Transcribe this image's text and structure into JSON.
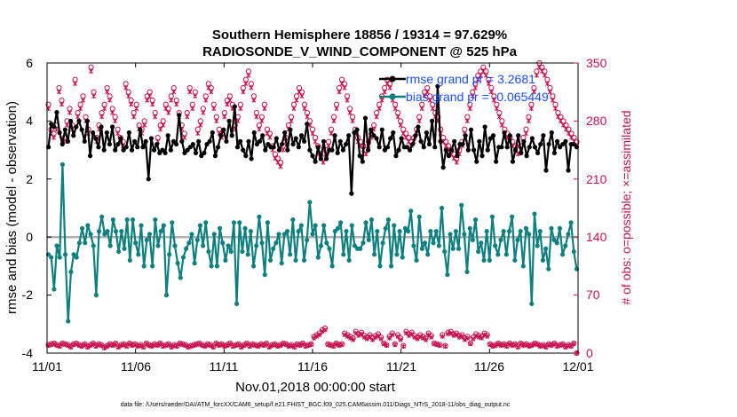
{
  "chart_data": {
    "type": "line",
    "title": "Southern Hemisphere 18856 / 19314 = 97.629%",
    "subtitle": "RADIOSONDE_V_WIND_COMPONENT @ 525 hPa",
    "xlabel": "Nov.01,2018 00:00:00 start",
    "ylabel": "rmse and bias (model - observation)",
    "ylabel_right": "# of obs: o=possible; ×=assimilated",
    "footer": "data file: /Users/raeder/DAI/ATM_forcXX/CAM6_setup/f.e21.FHIST_BGC.f09_025.CAM6assim.011/Diags_NTrS_2018-11/obs_diag_output.nc",
    "xlim": [
      0,
      30
    ],
    "ylim": [
      -4,
      6
    ],
    "ylim_right": [
      0,
      350
    ],
    "x_tick_labels": [
      "11/01",
      "11/06",
      "11/11",
      "11/16",
      "11/21",
      "11/26",
      "12/01"
    ],
    "y_tick_labels": [
      "-4",
      "-2",
      "0",
      "2",
      "4",
      "6"
    ],
    "y_right_tick_labels": [
      "0",
      "70",
      "140",
      "210",
      "280",
      "350"
    ],
    "legend": [
      "rmse grand pr = 3.2681",
      "bias grand pr = -0.065449"
    ],
    "colors": {
      "rmse": "#000000",
      "bias": "#0f8080",
      "obs": "#c8104b",
      "zero": "#b0b0b0",
      "legend_text": "#1a4dff"
    },
    "series": [
      {
        "name": "rmse",
        "values": [
          3.1,
          3.9,
          3.8,
          4.3,
          3.6,
          3.2,
          3.7,
          3.3,
          4.0,
          3.5,
          3.8,
          4.0,
          3.7,
          3.3,
          4.0,
          2.8,
          3.6,
          3.4,
          3.1,
          3.8,
          3.0,
          3.6,
          3.2,
          3.8,
          3.0,
          3.2,
          3.4,
          3.0,
          3.1,
          3.6,
          3.0,
          3.3,
          3.1,
          3.7,
          3.1,
          3.3,
          2.0,
          3.4,
          3.0,
          3.2,
          2.9,
          3.0,
          2.9,
          3.5,
          3.0,
          3.3,
          3.2,
          4.2,
          3.3,
          2.9,
          3.0,
          3.1,
          3.2,
          2.9,
          3.3,
          2.8,
          2.9,
          3.2,
          3.3,
          3.6,
          2.8,
          3.1,
          3.5,
          3.7,
          3.3,
          4.0,
          3.5,
          4.5,
          3.1,
          3.3,
          3.0,
          2.8,
          3.3,
          2.7,
          3.6,
          3.2,
          3.3,
          3.5,
          3.0,
          3.2,
          3.1,
          3.1,
          3.4,
          3.0,
          3.2,
          3.6,
          3.0,
          3.7,
          3.2,
          3.4,
          3.1,
          3.5,
          3.3,
          3.9,
          3.0,
          2.8,
          2.6,
          3.1,
          2.7,
          3.3,
          2.7,
          3.0,
          3.0,
          3.5,
          2.9,
          3.3,
          3.0,
          3.2,
          3.5,
          1.5,
          3.6,
          3.7,
          2.8,
          2.6,
          4.1,
          3.0,
          3.7,
          3.5,
          3.4,
          3.1,
          3.7,
          3.0,
          3.1,
          3.4,
          3.6,
          2.8,
          3.0,
          3.4,
          3.1,
          3.1,
          3.0,
          3.2,
          3.5,
          3.8,
          3.3,
          3.1,
          3.6,
          3.2,
          4.0,
          3.1,
          5.2,
          3.3,
          2.4,
          3.0,
          2.8,
          3.0,
          3.3,
          2.8,
          3.2,
          3.2,
          3.5,
          3.0,
          3.7,
          3.0,
          2.6,
          3.3,
          2.8,
          3.8,
          3.0,
          3.4,
          3.5,
          2.6,
          3.1,
          3.1,
          3.6,
          3.1,
          3.5,
          2.6,
          3.0,
          3.5,
          2.9,
          3.3,
          2.8,
          3.1,
          3.4,
          3.1,
          2.9,
          3.2,
          3.5,
          2.3,
          3.2,
          3.6,
          2.9,
          3.3,
          3.1,
          3.2,
          3.3,
          2.3,
          3.2,
          3.2,
          3.1
        ]
      },
      {
        "name": "bias",
        "values": [
          -0.6,
          -0.7,
          -1.8,
          -0.3,
          -0.7,
          2.5,
          -0.6,
          -2.9,
          -1.2,
          -0.6,
          -0.7,
          -0.2,
          0.3,
          -0.2,
          0.4,
          0.1,
          -0.3,
          -2.0,
          0.2,
          0.7,
          0.1,
          0.2,
          -0.3,
          0.6,
          0.2,
          -0.5,
          0.2,
          -0.4,
          0.6,
          -0.8,
          0.6,
          -0.2,
          -0.6,
          0.4,
          -1.0,
          -0.1,
          0.1,
          -1.0,
          0.6,
          -0.3,
          0.2,
          0.4,
          -2.0,
          -0.6,
          0.5,
          -0.3,
          -0.9,
          -1.4,
          -0.7,
          -0.4,
          -0.2,
          0.1,
          -0.9,
          -0.1,
          0.4,
          -0.3,
          0.5,
          -0.5,
          -1.0,
          0.1,
          -1.0,
          0.3,
          -0.2,
          -0.8,
          -0.3,
          -0.5,
          0.5,
          -2.3,
          0.5,
          -0.5,
          0.3,
          -0.6,
          0.2,
          -1.0,
          -0.3,
          0.7,
          -0.2,
          -1.3,
          0.5,
          -0.8,
          -0.4,
          -0.2,
          0.1,
          -0.9,
          0.1,
          0.2,
          -0.6,
          0.6,
          -0.8,
          0.2,
          0.4,
          -0.8,
          -0.1,
          1.2,
          0.1,
          0.4,
          -0.7,
          -0.3,
          0.4,
          -0.2,
          -0.4,
          -1.0,
          0.2,
          0.3,
          0.5,
          -0.6,
          0.2,
          -0.8,
          0.4,
          -0.3,
          -0.4,
          -0.4,
          -0.2,
          0.5,
          -0.1,
          0.6,
          -0.6,
          0.2,
          -1.0,
          -0.2,
          0.3,
          0.6,
          -1.0,
          0.4,
          -0.6,
          0.2,
          -0.7,
          0.3,
          0.2,
          0.9,
          -0.3,
          -0.8,
          0.7,
          -0.4,
          -0.2,
          -0.6,
          0.2,
          -0.2,
          0.2,
          -0.3,
          1.0,
          -0.5,
          -1.3,
          0.1,
          -0.4,
          0.2,
          -0.4,
          1.1,
          0.1,
          -1.2,
          0.3,
          -0.1,
          0.6,
          -0.5,
          -0.2,
          -0.8,
          0.2,
          -0.8,
          0.7,
          -0.3,
          -0.6,
          -0.1,
          0.2,
          -0.6,
          0.2,
          0.7,
          -0.8,
          -0.1,
          0.2,
          -1.0,
          0.3,
          0.1,
          -2.3,
          0.8,
          -0.3,
          0.2,
          -0.8,
          -0.4,
          -1.1,
          0.3,
          -0.1,
          -0.2,
          0.3,
          -0.6,
          -0.3,
          0.1,
          0.5,
          -0.5,
          -1.1
        ]
      },
      {
        "name": "obs_possible",
        "values": [
          10,
          11,
          12,
          10,
          9,
          12,
          11,
          10,
          8,
          11,
          12,
          10,
          9,
          11,
          8,
          10,
          12,
          9,
          11,
          10,
          7,
          9,
          11,
          10,
          12,
          8,
          10,
          11,
          9,
          12,
          10,
          11,
          9,
          10,
          8,
          12,
          10,
          9,
          11,
          10,
          12,
          9,
          10,
          11,
          8,
          10,
          9,
          12,
          11,
          10,
          8,
          9,
          10,
          11,
          12,
          10,
          9,
          11,
          10,
          8,
          12,
          10,
          11,
          9,
          10,
          12,
          9,
          10,
          11,
          8,
          10,
          12,
          9,
          11,
          10,
          9,
          11,
          10,
          12,
          8,
          10,
          11,
          9,
          10,
          12,
          11,
          9,
          10,
          8,
          11,
          10,
          12,
          9,
          10,
          11,
          20,
          22,
          24,
          28,
          30,
          11,
          10,
          9,
          12,
          10,
          11,
          24,
          22,
          20,
          18,
          26,
          23,
          25,
          21,
          19,
          22,
          18,
          21,
          23,
          19,
          12,
          10,
          20,
          24,
          11,
          22,
          18,
          9,
          26,
          23,
          25,
          21,
          19,
          22,
          20,
          18,
          24,
          21,
          12,
          11,
          10,
          22,
          9,
          25,
          26,
          23,
          24,
          21,
          22,
          18,
          20,
          12,
          19,
          23,
          21,
          20,
          24,
          22,
          11,
          9,
          10,
          12,
          10,
          11,
          9,
          12,
          10,
          11,
          8,
          12,
          10,
          11,
          9,
          10,
          12,
          11,
          9,
          10,
          8,
          11,
          10,
          12,
          9,
          10,
          11,
          8,
          10,
          9,
          12,
          0
        ]
      },
      {
        "name": "obs_assimilated",
        "values": [
          9,
          10,
          11,
          9,
          8,
          11,
          10,
          9,
          7,
          10,
          11,
          9,
          8,
          10,
          7,
          9,
          11,
          8,
          10,
          9,
          6,
          8,
          10,
          9,
          11,
          7,
          9,
          10,
          8,
          11,
          9,
          10,
          8,
          9,
          7,
          11,
          9,
          8,
          10,
          9,
          11,
          8,
          9,
          10,
          7,
          9,
          8,
          11,
          10,
          9,
          7,
          8,
          9,
          10,
          11,
          9,
          8,
          10,
          9,
          7,
          11,
          9,
          10,
          8,
          9,
          11,
          8,
          9,
          10,
          7,
          9,
          11,
          8,
          10,
          9,
          8,
          10,
          9,
          11,
          7,
          9,
          10,
          8,
          9,
          11,
          10,
          8,
          9,
          7,
          10,
          9,
          11,
          8,
          9,
          10,
          18,
          20,
          22,
          26,
          28,
          10,
          9,
          8,
          11,
          9,
          10,
          22,
          20,
          18,
          16,
          24,
          21,
          23,
          19,
          17,
          20,
          16,
          19,
          21,
          17,
          11,
          9,
          18,
          22,
          10,
          20,
          16,
          8,
          24,
          21,
          23,
          19,
          17,
          20,
          18,
          16,
          22,
          19,
          11,
          10,
          9,
          20,
          8,
          23,
          24,
          21,
          22,
          19,
          20,
          16,
          18,
          11,
          17,
          21,
          19,
          18,
          22,
          20,
          10,
          8,
          9,
          11,
          9,
          10,
          8,
          11,
          9,
          10,
          7,
          11,
          9,
          10,
          8,
          9,
          11,
          10,
          8,
          9,
          7,
          10,
          9,
          11,
          8,
          9,
          10,
          7,
          9,
          8,
          11,
          0
        ]
      },
      {
        "name": "obs_possible_upper",
        "values": [
          300,
          270,
          265,
          275,
          320,
          305,
          260,
          280,
          295,
          275,
          330,
          290,
          300,
          310,
          285,
          270,
          345,
          315,
          260,
          275,
          290,
          300,
          320,
          310,
          295,
          285,
          270,
          260,
          255,
          325,
          315,
          305,
          290,
          300,
          275,
          270,
          280,
          310,
          315,
          305,
          290,
          260,
          275,
          280,
          300,
          295,
          310,
          320,
          305,
          290,
          275,
          265,
          290,
          320,
          300,
          315,
          270,
          280,
          295,
          310,
          325,
          320,
          300,
          285,
          270,
          265,
          290,
          305,
          310,
          300,
          275,
          285,
          300,
          320,
          330,
          340,
          325,
          310,
          290,
          275,
          285,
          300,
          270,
          265,
          250,
          240,
          235,
          230,
          250,
          260,
          275,
          285,
          300,
          310,
          320,
          315,
          300,
          290,
          280,
          270,
          260,
          250,
          240,
          235,
          245,
          255,
          270,
          285,
          300,
          320,
          330,
          325,
          310,
          295,
          285,
          270,
          260,
          255,
          250,
          245,
          255,
          265,
          275,
          290,
          300,
          310,
          320,
          330,
          325,
          310,
          300,
          290,
          280,
          270,
          265,
          260,
          255,
          260,
          270,
          285,
          300,
          315,
          320,
          310,
          300,
          290,
          285,
          270,
          260,
          255,
          250,
          245,
          240,
          235,
          245,
          255,
          270,
          285,
          300,
          315,
          325,
          335,
          340,
          345,
          340,
          330,
          320,
          310,
          300,
          290,
          280,
          270,
          265,
          260,
          255,
          250,
          245,
          250,
          260,
          270,
          285,
          300,
          320,
          340,
          350,
          345,
          340,
          330,
          320,
          310,
          300,
          290,
          285,
          280,
          275,
          270,
          265,
          260,
          255
        ]
      },
      {
        "name": "obs_assimilated_upper",
        "values": [
          295,
          265,
          260,
          270,
          315,
          300,
          255,
          275,
          290,
          270,
          325,
          285,
          295,
          305,
          280,
          265,
          340,
          310,
          255,
          270,
          285,
          295,
          315,
          305,
          290,
          280,
          265,
          255,
          250,
          320,
          310,
          300,
          285,
          295,
          270,
          265,
          275,
          305,
          310,
          300,
          285,
          255,
          270,
          275,
          295,
          290,
          305,
          315,
          300,
          285,
          270,
          260,
          285,
          315,
          295,
          310,
          265,
          275,
          290,
          305,
          320,
          315,
          295,
          280,
          265,
          260,
          285,
          300,
          305,
          295,
          270,
          280,
          295,
          315,
          325,
          335,
          320,
          305,
          285,
          270,
          280,
          295,
          265,
          260,
          245,
          235,
          230,
          225,
          245,
          255,
          270,
          280,
          295,
          305,
          315,
          310,
          295,
          285,
          275,
          265,
          255,
          245,
          235,
          230,
          240,
          250,
          265,
          280,
          295,
          315,
          325,
          320,
          305,
          290,
          280,
          265,
          255,
          250,
          245,
          240,
          250,
          260,
          270,
          285,
          295,
          305,
          315,
          325,
          320,
          305,
          295,
          285,
          275,
          265,
          260,
          255,
          250,
          255,
          265,
          280,
          295,
          310,
          315,
          305,
          295,
          285,
          280,
          265,
          255,
          250,
          245,
          240,
          235,
          230,
          240,
          250,
          265,
          280,
          295,
          310,
          320,
          330,
          335,
          340,
          335,
          325,
          315,
          305,
          295,
          285,
          275,
          265,
          260,
          255,
          250,
          245,
          240,
          245,
          255,
          265,
          280,
          295,
          315,
          335,
          345,
          340,
          335,
          325,
          315,
          305,
          295,
          285,
          280,
          275,
          270,
          265,
          260,
          255,
          250
        ]
      }
    ]
  }
}
